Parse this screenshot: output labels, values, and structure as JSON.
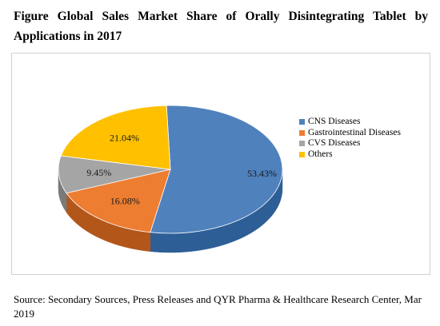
{
  "figure": {
    "title": "Figure Global Sales Market Share of Orally Disintegrating Tablet by Applications in 2017",
    "source": "Source: Secondary Sources, Press Releases and QYR Pharma & Healthcare Research Center, Mar 2019"
  },
  "chart_data": {
    "type": "pie",
    "style": "3d",
    "title": "Figure Global Sales Market Share of Orally Disintegrating Tablet by Applications in 2017",
    "categories": [
      "CNS Diseases",
      "Gastrointestinal Diseases",
      "CVS Diseases",
      "Others"
    ],
    "values": [
      53.43,
      16.08,
      9.45,
      21.04
    ],
    "labels": [
      "53.43%",
      "16.08%",
      "9.45%",
      "21.04%"
    ],
    "colors": [
      "#4F81BD",
      "#ED7D31",
      "#A5A5A5",
      "#FFC000"
    ],
    "side_colors": [
      "#2E5E96",
      "#B3561A",
      "#7A7A7A",
      "#C79400"
    ],
    "legend_position": "right"
  }
}
